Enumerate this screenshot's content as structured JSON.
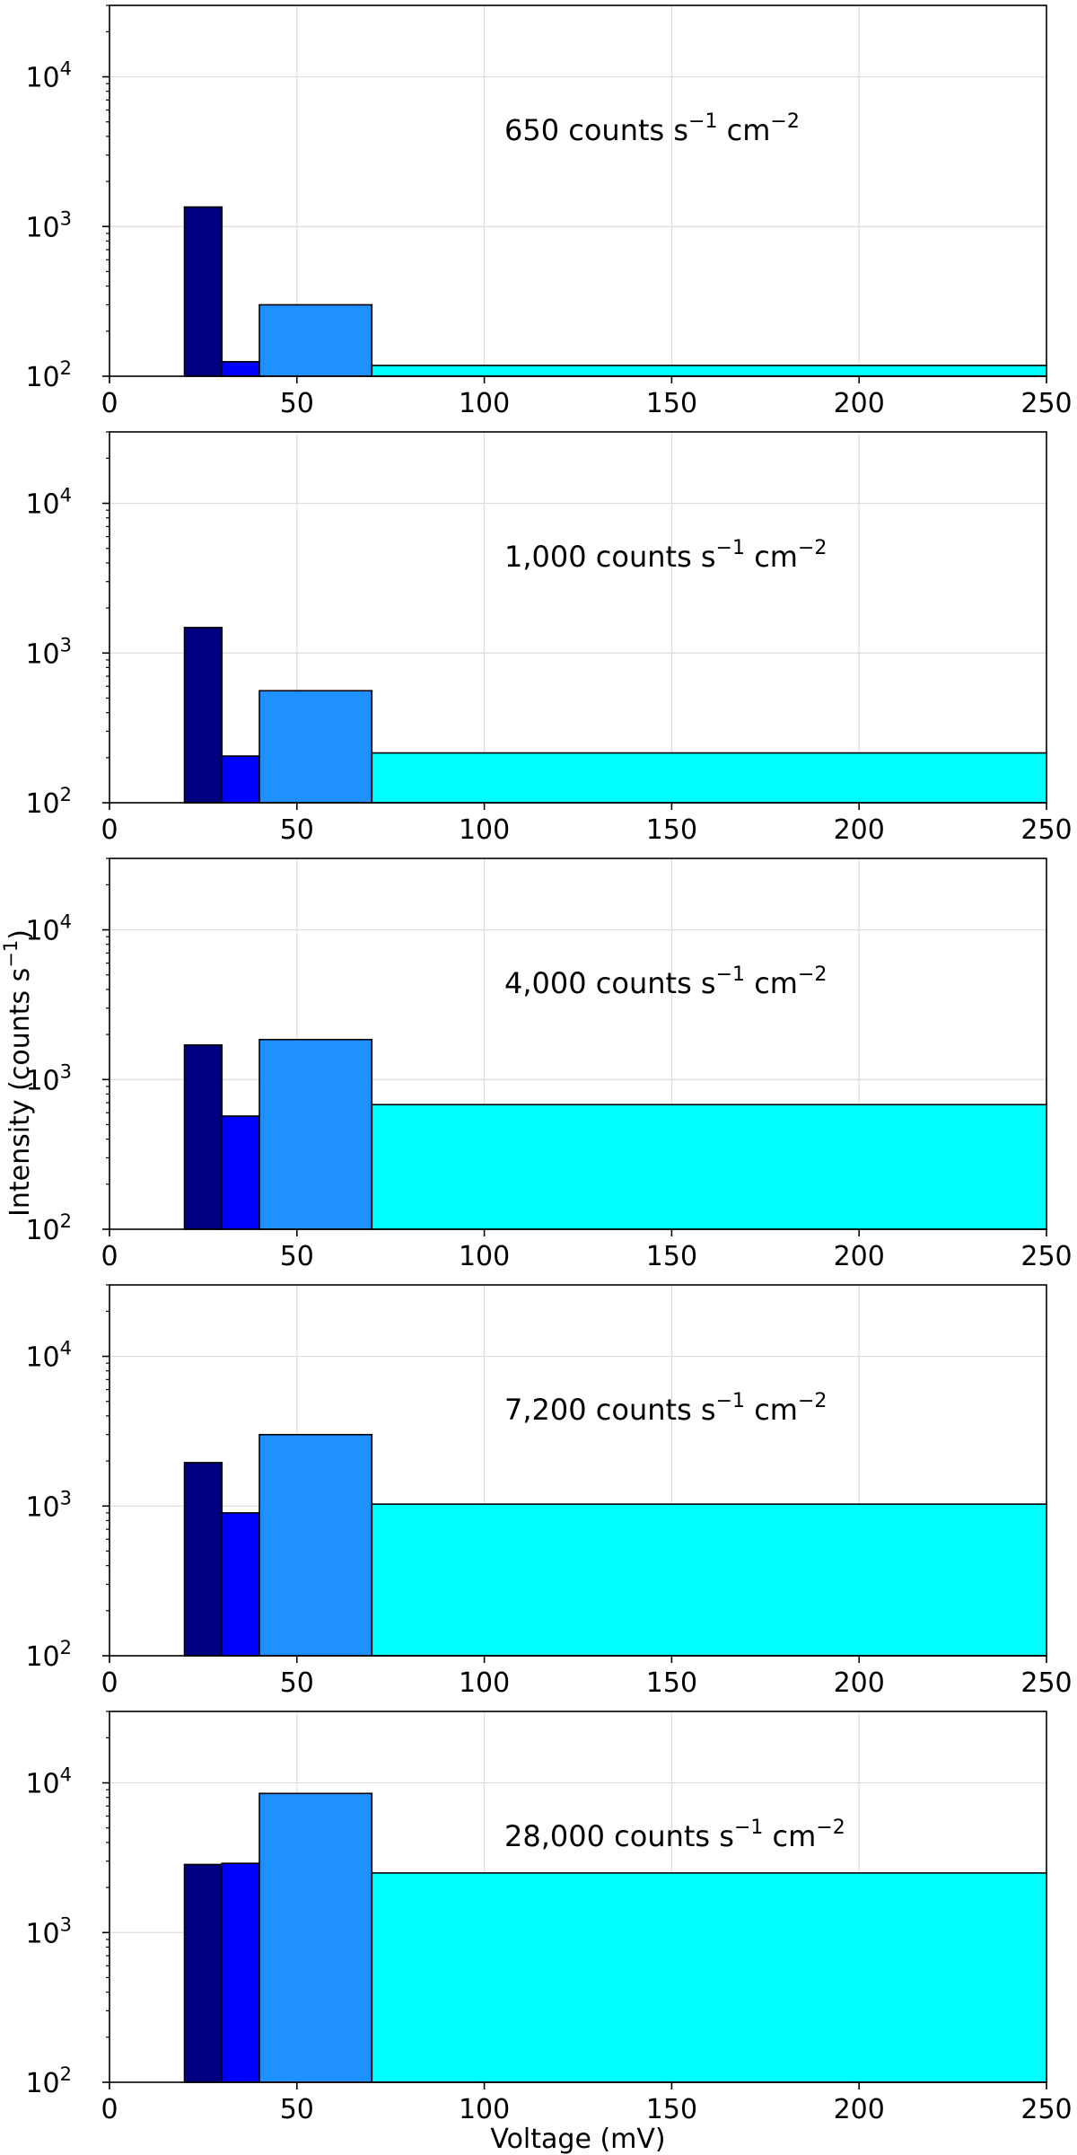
{
  "chart_data": {
    "type": "bar",
    "layout": "5 stacked panels, shared x axis",
    "xlabel": "Voltage (mV)",
    "ylabel": "Intensity (counts s",
    "ylabel_sup": "−1",
    "ylabel_end": ")",
    "xlim": [
      0,
      250
    ],
    "ylim": [
      100,
      30000
    ],
    "yscale": "log",
    "grid": true,
    "x_ticks": [
      {
        "value": 0,
        "label": "0"
      },
      {
        "value": 50,
        "label": "50"
      },
      {
        "value": 100,
        "label": "100"
      },
      {
        "value": 150,
        "label": "150"
      },
      {
        "value": 200,
        "label": "200"
      },
      {
        "value": 250,
        "label": "250"
      }
    ],
    "y_ticks": [
      {
        "value": 100,
        "base": "10",
        "exp": "2"
      },
      {
        "value": 1000,
        "base": "10",
        "exp": "3"
      },
      {
        "value": 10000,
        "base": "10",
        "exp": "4"
      }
    ],
    "bins": [
      {
        "from": 20,
        "to": 30,
        "color": "#000080"
      },
      {
        "from": 30,
        "to": 40,
        "color": "#0000ff"
      },
      {
        "from": 40,
        "to": 70,
        "color": "#1e90ff"
      },
      {
        "from": 70,
        "to": 250,
        "color": "#00ffff"
      }
    ],
    "panels": [
      {
        "annotation": "650 counts s",
        "ann_sup1": "−1",
        "ann_mid": " cm",
        "ann_sup2": "−2",
        "values": [
          1350,
          125,
          300,
          118
        ]
      },
      {
        "annotation": "1,000 counts s",
        "ann_sup1": "−1",
        "ann_mid": " cm",
        "ann_sup2": "−2",
        "values": [
          1480,
          205,
          560,
          215
        ]
      },
      {
        "annotation": "4,000 counts s",
        "ann_sup1": "−1",
        "ann_mid": " cm",
        "ann_sup2": "−2",
        "values": [
          1700,
          570,
          1850,
          680
        ]
      },
      {
        "annotation": "7,200 counts s",
        "ann_sup1": "−1",
        "ann_mid": " cm",
        "ann_sup2": "−2",
        "values": [
          1950,
          900,
          3000,
          1030
        ]
      },
      {
        "annotation": "28,000 counts s",
        "ann_sup1": "−1",
        "ann_mid": " cm",
        "ann_sup2": "−2",
        "values": [
          2850,
          2900,
          8500,
          2500
        ]
      }
    ]
  }
}
